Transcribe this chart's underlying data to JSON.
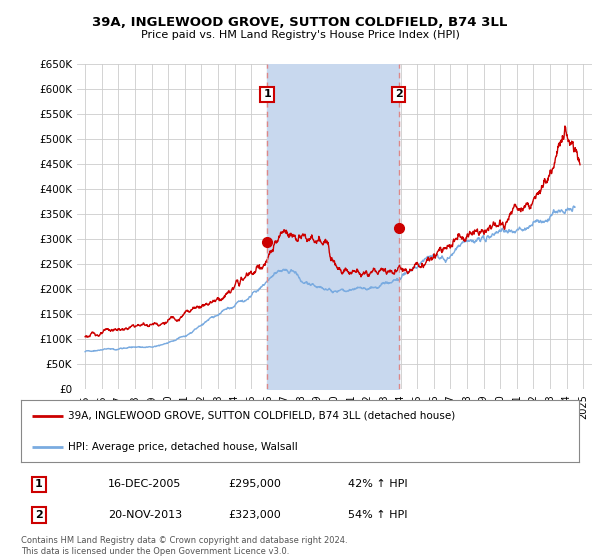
{
  "title_line1": "39A, INGLEWOOD GROVE, SUTTON COLDFIELD, B74 3LL",
  "title_line2": "Price paid vs. HM Land Registry's House Price Index (HPI)",
  "ylim": [
    0,
    650000
  ],
  "yticks": [
    0,
    50000,
    100000,
    150000,
    200000,
    250000,
    300000,
    350000,
    400000,
    450000,
    500000,
    550000,
    600000,
    650000
  ],
  "ytick_labels": [
    "£0",
    "£50K",
    "£100K",
    "£150K",
    "£200K",
    "£250K",
    "£300K",
    "£350K",
    "£400K",
    "£450K",
    "£500K",
    "£550K",
    "£600K",
    "£650K"
  ],
  "xlim_start": 1994.5,
  "xlim_end": 2025.5,
  "transaction1_x": 2005.96,
  "transaction1_y": 295000,
  "transaction1_label": "1",
  "transaction1_date": "16-DEC-2005",
  "transaction1_price": "£295,000",
  "transaction1_hpi": "42% ↑ HPI",
  "transaction2_x": 2013.89,
  "transaction2_y": 323000,
  "transaction2_label": "2",
  "transaction2_date": "20-NOV-2013",
  "transaction2_price": "£323,000",
  "transaction2_hpi": "54% ↑ HPI",
  "vline_color": "#dd8888",
  "property_line_color": "#cc0000",
  "hpi_line_color": "#7aabe0",
  "shade_color": "#c8d8ee",
  "plot_bg_color": "#ffffff",
  "legend_label_property": "39A, INGLEWOOD GROVE, SUTTON COLDFIELD, B74 3LL (detached house)",
  "legend_label_hpi": "HPI: Average price, detached house, Walsall",
  "footer_text": "Contains HM Land Registry data © Crown copyright and database right 2024.\nThis data is licensed under the Open Government Licence v3.0."
}
